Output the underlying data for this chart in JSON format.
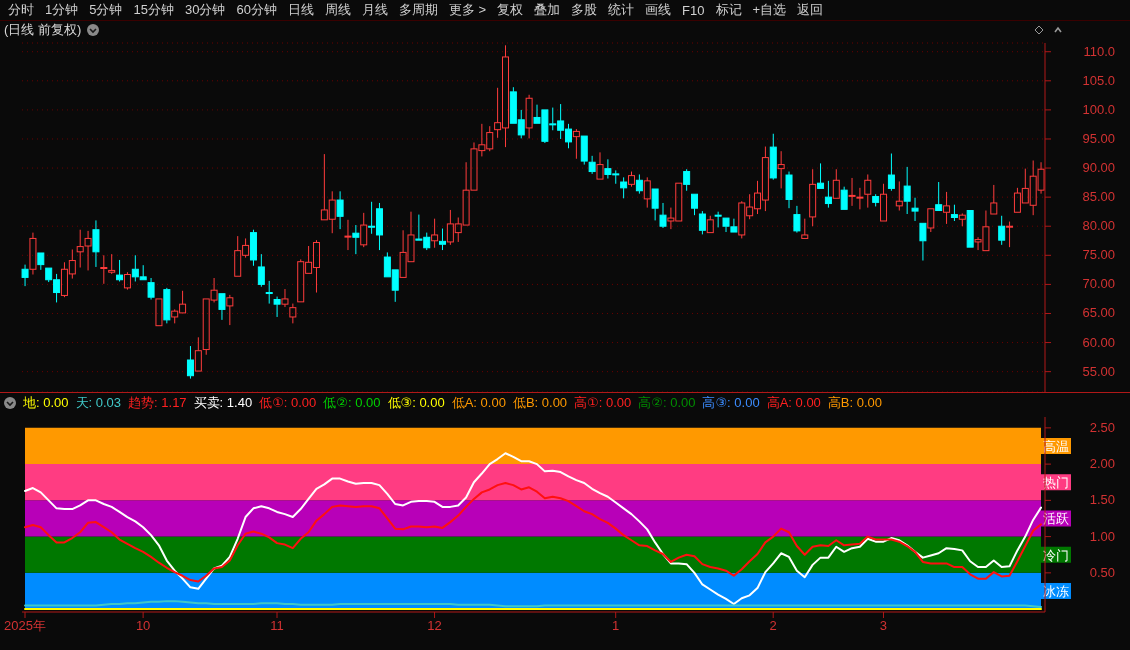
{
  "chart_data": [
    {
      "type": "candlestick",
      "title": "(日线 前复权)",
      "annotations": [
        "分时",
        "1分钟",
        "5分钟",
        "15分钟",
        "30分钟",
        "60分钟",
        "日线",
        "周线",
        "月线",
        "多周期",
        "更多 >",
        "复权",
        "叠加",
        "多股",
        "统计",
        "画线",
        "F10",
        "标记",
        "+自选",
        "返回"
      ],
      "tick_labels": "y",
      "grid": "y",
      "ylim": [
        51.5,
        111.5
      ],
      "yticks": [
        {
          "value": 55,
          "label": "55.00"
        },
        {
          "value": 60,
          "label": "60.00"
        },
        {
          "value": 65,
          "label": "65.00"
        },
        {
          "value": 70,
          "label": "70.00"
        },
        {
          "value": 75,
          "label": "75.00"
        },
        {
          "value": 80,
          "label": "80.00"
        },
        {
          "value": 85,
          "label": "85.00"
        },
        {
          "value": 90,
          "label": "90.00"
        },
        {
          "value": 95,
          "label": "95.00"
        },
        {
          "value": 100,
          "label": "100.0"
        },
        {
          "value": 105,
          "label": "105.0"
        },
        {
          "value": 110,
          "label": "110.0"
        }
      ],
      "categories": [
        "2025年",
        null,
        null,
        null,
        null,
        null,
        null,
        null,
        null,
        null,
        null,
        null,
        null,
        null,
        null,
        "10",
        null,
        null,
        null,
        null,
        null,
        null,
        null,
        null,
        null,
        null,
        null,
        null,
        null,
        null,
        null,
        null,
        "11",
        null,
        null,
        null,
        null,
        null,
        null,
        null,
        null,
        null,
        null,
        null,
        null,
        null,
        null,
        null,
        null,
        null,
        null,
        null,
        "12",
        null,
        null,
        null,
        null,
        null,
        null,
        null,
        null,
        null,
        null,
        null,
        null,
        null,
        null,
        null,
        null,
        null,
        null,
        null,
        null,
        null,
        null,
        "1",
        null,
        null,
        null,
        null,
        null,
        null,
        null,
        null,
        null,
        null,
        null,
        null,
        null,
        null,
        null,
        null,
        null,
        null,
        null,
        "2",
        null,
        null,
        null,
        null,
        null,
        null,
        null,
        null,
        null,
        null,
        null,
        null,
        null,
        "3",
        null,
        null,
        null,
        null,
        null,
        null,
        null,
        null,
        null,
        null,
        null,
        null,
        null,
        null,
        null,
        null,
        null,
        null,
        null,
        null
      ],
      "ohlc": [
        [
          72.6,
          73.4,
          69.7,
          71.2
        ],
        [
          72.6,
          78.9,
          71.7,
          77.9
        ],
        [
          75.4,
          75.5,
          72.5,
          73.4
        ],
        [
          72.8,
          72.8,
          70.4,
          70.8
        ],
        [
          70.8,
          71.8,
          66.9,
          68.6
        ],
        [
          68.1,
          73.8,
          67.8,
          72.6
        ],
        [
          71.8,
          76.0,
          71.0,
          74.1
        ],
        [
          75.6,
          79.4,
          72.9,
          76.5
        ],
        [
          76.6,
          79.2,
          72.4,
          77.9
        ],
        [
          79.4,
          81.0,
          73.0,
          75.6
        ],
        [
          72.8,
          75.0,
          70.1,
          72.9
        ],
        [
          72.1,
          75.2,
          71.8,
          72.4
        ],
        [
          71.6,
          74.2,
          70.5,
          70.8
        ],
        [
          69.4,
          72.1,
          69.1,
          71.7
        ],
        [
          72.6,
          75.0,
          70.5,
          71.3
        ],
        [
          71.3,
          73.3,
          70.7,
          70.8
        ],
        [
          70.3,
          71.1,
          67.4,
          67.8
        ],
        [
          62.9,
          67.5,
          62.9,
          67.5
        ],
        [
          69.1,
          69.4,
          63.3,
          63.9
        ],
        [
          64.4,
          65.7,
          63.3,
          65.4
        ],
        [
          65.1,
          68.9,
          65.1,
          66.6
        ],
        [
          57.0,
          59.4,
          53.8,
          54.3
        ],
        [
          55.1,
          60.9,
          55.1,
          58.6
        ],
        [
          58.8,
          67.7,
          57.9,
          67.5
        ],
        [
          67.3,
          71.1,
          66.9,
          69.0
        ],
        [
          68.4,
          68.6,
          63.9,
          65.7
        ],
        [
          66.3,
          68.2,
          63.0,
          67.7
        ],
        [
          71.4,
          78.3,
          71.4,
          75.8
        ],
        [
          75.0,
          77.9,
          74.6,
          76.7
        ],
        [
          78.9,
          79.4,
          73.2,
          74.2
        ],
        [
          73.0,
          75.2,
          69.6,
          70.0
        ],
        [
          68.6,
          70.6,
          66.7,
          68.5
        ],
        [
          67.4,
          67.9,
          64.4,
          66.6
        ],
        [
          66.6,
          69.2,
          66.1,
          67.5
        ],
        [
          64.4,
          66.7,
          63.3,
          66.0
        ],
        [
          67.0,
          74.3,
          67.0,
          73.9
        ],
        [
          71.9,
          76.6,
          71.9,
          73.8
        ],
        [
          72.9,
          77.6,
          68.6,
          77.2
        ],
        [
          81.1,
          92.4,
          81.1,
          82.8
        ],
        [
          81.2,
          86.0,
          78.8,
          84.5
        ],
        [
          84.5,
          86.0,
          79.5,
          81.7
        ],
        [
          78.2,
          81.1,
          75.9,
          78.3
        ],
        [
          78.8,
          80.2,
          75.2,
          78.1
        ],
        [
          76.8,
          82.3,
          76.4,
          80.2
        ],
        [
          80.0,
          84.2,
          78.7,
          79.9
        ],
        [
          83.0,
          84.0,
          75.9,
          78.5
        ],
        [
          74.7,
          75.5,
          71.3,
          71.3
        ],
        [
          72.5,
          72.5,
          67.0,
          69.0
        ],
        [
          71.2,
          79.3,
          71.2,
          75.5
        ],
        [
          73.9,
          82.5,
          73.9,
          78.5
        ],
        [
          77.8,
          82.0,
          77.4,
          77.6
        ],
        [
          78.1,
          78.9,
          75.9,
          76.3
        ],
        [
          77.5,
          81.3,
          76.3,
          78.5
        ],
        [
          77.4,
          79.6,
          75.9,
          76.9
        ],
        [
          77.3,
          82.8,
          76.8,
          80.4
        ],
        [
          78.9,
          81.5,
          77.3,
          80.4
        ],
        [
          80.2,
          91.0,
          80.2,
          86.2
        ],
        [
          86.2,
          94.4,
          86.2,
          93.3
        ],
        [
          93.0,
          97.6,
          92.0,
          94.0
        ],
        [
          93.3,
          97.2,
          92.9,
          96.1
        ],
        [
          96.6,
          103.8,
          95.2,
          97.8
        ],
        [
          96.9,
          111.1,
          93.6,
          109.1
        ],
        [
          103.1,
          103.9,
          97.7,
          97.7
        ],
        [
          98.3,
          100.0,
          95.1,
          95.7
        ],
        [
          96.9,
          102.6,
          95.1,
          102.0
        ],
        [
          98.7,
          100.9,
          97.7,
          97.7
        ],
        [
          100.0,
          100.2,
          94.3,
          94.6
        ],
        [
          97.6,
          100.4,
          96.5,
          97.5
        ],
        [
          98.1,
          101.0,
          95.0,
          96.5
        ],
        [
          96.7,
          97.6,
          93.4,
          94.5
        ],
        [
          95.4,
          96.7,
          91.6,
          96.3
        ],
        [
          95.5,
          95.5,
          90.6,
          91.2
        ],
        [
          91.0,
          92.1,
          89.0,
          89.4
        ],
        [
          88.1,
          92.7,
          87.9,
          90.6
        ],
        [
          89.9,
          91.5,
          88.2,
          88.9
        ],
        [
          89.0,
          89.6,
          87.3,
          88.9
        ],
        [
          87.6,
          88.4,
          84.8,
          86.6
        ],
        [
          87.2,
          89.4,
          86.8,
          88.7
        ],
        [
          87.9,
          88.9,
          85.6,
          86.1
        ],
        [
          84.7,
          88.4,
          83.2,
          87.8
        ],
        [
          86.4,
          86.4,
          81.0,
          83.1
        ],
        [
          81.9,
          84.0,
          79.7,
          80.0
        ],
        [
          80.9,
          83.2,
          79.5,
          81.4
        ],
        [
          80.9,
          87.4,
          80.7,
          87.4
        ],
        [
          89.4,
          89.8,
          86.1,
          87.2
        ],
        [
          85.5,
          85.5,
          81.9,
          83.1
        ],
        [
          82.1,
          82.6,
          78.6,
          79.3
        ],
        [
          78.9,
          81.8,
          78.9,
          81.1
        ],
        [
          81.9,
          82.5,
          79.8,
          81.8
        ],
        [
          81.4,
          81.4,
          79.0,
          80.0
        ],
        [
          79.9,
          81.3,
          78.8,
          79.0
        ],
        [
          78.5,
          84.3,
          77.9,
          84.0
        ],
        [
          81.8,
          85.5,
          81.2,
          83.3
        ],
        [
          83.0,
          87.8,
          82.1,
          85.7
        ],
        [
          84.5,
          93.7,
          82.6,
          91.8
        ],
        [
          93.6,
          95.9,
          88.0,
          88.3
        ],
        [
          89.9,
          92.9,
          86.5,
          90.6
        ],
        [
          88.8,
          89.4,
          83.1,
          84.6
        ],
        [
          82.0,
          83.5,
          78.9,
          79.2
        ],
        [
          77.9,
          81.3,
          77.7,
          78.5
        ],
        [
          81.6,
          89.8,
          80.0,
          87.2
        ],
        [
          87.4,
          90.8,
          86.5,
          86.5
        ],
        [
          85.0,
          87.8,
          83.2,
          83.9
        ],
        [
          84.8,
          89.8,
          84.6,
          87.9
        ],
        [
          86.2,
          86.8,
          82.7,
          82.9
        ],
        [
          85.2,
          88.3,
          83.5,
          85.3
        ],
        [
          84.9,
          86.6,
          82.9,
          85.0
        ],
        [
          85.5,
          88.9,
          83.2,
          87.9
        ],
        [
          85.1,
          85.5,
          83.4,
          84.1
        ],
        [
          80.9,
          87.3,
          80.9,
          85.5
        ],
        [
          88.8,
          92.5,
          86.1,
          86.5
        ],
        [
          83.5,
          87.7,
          82.7,
          84.3
        ],
        [
          86.9,
          90.2,
          82.1,
          84.3
        ],
        [
          83.1,
          84.9,
          80.9,
          82.6
        ],
        [
          80.5,
          80.5,
          74.1,
          77.5
        ],
        [
          79.7,
          83.2,
          79.0,
          83.0
        ],
        [
          83.7,
          87.6,
          82.6,
          82.7
        ],
        [
          82.4,
          85.9,
          80.4,
          83.5
        ],
        [
          82.0,
          83.7,
          80.9,
          81.5
        ],
        [
          81.2,
          82.2,
          80.0,
          81.9
        ],
        [
          82.7,
          82.7,
          76.3,
          76.4
        ],
        [
          77.3,
          78.1,
          75.9,
          77.7
        ],
        [
          75.8,
          82.7,
          75.6,
          79.9
        ],
        [
          82.1,
          87.1,
          82.1,
          84.0
        ],
        [
          80.0,
          81.8,
          76.8,
          77.6
        ],
        [
          79.9,
          80.8,
          76.4,
          80.0
        ],
        [
          82.4,
          86.6,
          82.4,
          85.7
        ],
        [
          84.0,
          89.9,
          84.0,
          86.5
        ],
        [
          83.6,
          91.3,
          81.9,
          88.6
        ],
        [
          86.2,
          91.0,
          85.6,
          89.8
        ]
      ]
    },
    {
      "type": "line",
      "annotations": [
        "地: 0.00",
        "天: 0.03",
        "趋势: 1.17",
        "买卖: 1.40",
        "低①: 0.00",
        "低②: 0.00",
        "低③: 0.00",
        "低A: 0.00",
        "低B: 0.00",
        "高①: 0.00",
        "高②: 0.00",
        "高③: 0.00",
        "高A: 0.00",
        "高B: 0.00"
      ],
      "ylim": [
        -0.04,
        2.65
      ],
      "yticks": [
        {
          "value": 0.5,
          "label": "0.50"
        },
        {
          "value": 1,
          "label": "1.00"
        },
        {
          "value": 1.5,
          "label": "1.50"
        },
        {
          "value": 2,
          "label": "2.00"
        },
        {
          "value": 2.5,
          "label": "2.50"
        }
      ],
      "bands": [
        {
          "axis": "y",
          "from": 0,
          "to": 0.5,
          "label": "冰冻",
          "color": "#008cff"
        },
        {
          "axis": "y",
          "from": 0.5,
          "to": 1,
          "label": "冷门",
          "color": "#007800"
        },
        {
          "axis": "y",
          "from": 1,
          "to": 1.5,
          "label": "活跃",
          "color": "#b800b8"
        },
        {
          "axis": "y",
          "from": 1.5,
          "to": 2,
          "label": "热门",
          "color": "#ff3c82"
        },
        {
          "axis": "y",
          "from": 2,
          "to": 2.5,
          "label": "高温",
          "color": "#ff9900"
        }
      ],
      "categories": [
        "2025年",
        null,
        null,
        null,
        null,
        null,
        null,
        null,
        null,
        null,
        null,
        null,
        null,
        null,
        null,
        "10",
        null,
        null,
        null,
        null,
        null,
        null,
        null,
        null,
        null,
        null,
        null,
        null,
        null,
        null,
        null,
        null,
        "11",
        null,
        null,
        null,
        null,
        null,
        null,
        null,
        null,
        null,
        null,
        null,
        null,
        null,
        null,
        null,
        null,
        null,
        null,
        null,
        "12",
        null,
        null,
        null,
        null,
        null,
        null,
        null,
        null,
        null,
        null,
        null,
        null,
        null,
        null,
        null,
        null,
        null,
        null,
        null,
        null,
        null,
        null,
        "1",
        null,
        null,
        null,
        null,
        null,
        null,
        null,
        null,
        null,
        null,
        null,
        null,
        null,
        null,
        null,
        null,
        null,
        null,
        null,
        "2",
        null,
        null,
        null,
        null,
        null,
        null,
        null,
        null,
        null,
        null,
        null,
        null,
        null,
        "3",
        null,
        null,
        null,
        null,
        null,
        null,
        null,
        null,
        null,
        null,
        null,
        null,
        null,
        null,
        null,
        null,
        null,
        null,
        null,
        null
      ],
      "series": [
        {
          "type": "line",
          "color": "#ffff00",
          "values": [
            0,
            0,
            0,
            0,
            0,
            0,
            0,
            0,
            0,
            0,
            0,
            0,
            0,
            0,
            0,
            0,
            0,
            0,
            0,
            0,
            0,
            0,
            0,
            0,
            0,
            0,
            0,
            0,
            0,
            0,
            0,
            0,
            0,
            0,
            0,
            0,
            0,
            0,
            0,
            0,
            0,
            0,
            0,
            0,
            0,
            0,
            0,
            0,
            0,
            0,
            0,
            0,
            0,
            0,
            0,
            0,
            0,
            0,
            0,
            0,
            0,
            0,
            0,
            0,
            0,
            0,
            0,
            0,
            0,
            0,
            0,
            0,
            0,
            0,
            0,
            0,
            0,
            0,
            0,
            0,
            0,
            0,
            0,
            0,
            0,
            0,
            0,
            0,
            0,
            0,
            0,
            0,
            0,
            0,
            0,
            0,
            0,
            0,
            0,
            0,
            0,
            0,
            0,
            0,
            0,
            0,
            0,
            0,
            0,
            0,
            0,
            0,
            0,
            0,
            0,
            0,
            0,
            0,
            0,
            0,
            0,
            0,
            0,
            0,
            0,
            0,
            0,
            0,
            0,
            0
          ]
        },
        {
          "type": "line",
          "color": "#40c8c8",
          "values": [
            0.05,
            0.05,
            0.05,
            0.05,
            0.05,
            0.05,
            0.05,
            0.05,
            0.05,
            0.05,
            0.06,
            0.07,
            0.07,
            0.08,
            0.08,
            0.09,
            0.1,
            0.1,
            0.11,
            0.11,
            0.1,
            0.09,
            0.08,
            0.08,
            0.07,
            0.07,
            0.07,
            0.07,
            0.07,
            0.07,
            0.08,
            0.08,
            0.08,
            0.07,
            0.07,
            0.06,
            0.06,
            0.06,
            0.06,
            0.06,
            0.07,
            0.07,
            0.07,
            0.07,
            0.07,
            0.07,
            0.07,
            0.07,
            0.07,
            0.07,
            0.07,
            0.07,
            0.07,
            0.07,
            0.07,
            0.06,
            0.06,
            0.06,
            0.06,
            0.06,
            0.05,
            0.04,
            0.04,
            0.04,
            0.04,
            0.04,
            0.05,
            0.05,
            0.05,
            0.05,
            0.05,
            0.05,
            0.05,
            0.05,
            0.05,
            0.05,
            0.05,
            0.05,
            0.05,
            0.05,
            0.05,
            0.05,
            0.05,
            0.05,
            0.05,
            0.05,
            0.05,
            0.05,
            0.05,
            0.05,
            0.05,
            0.05,
            0.05,
            0.05,
            0.05,
            0.05,
            0.05,
            0.05,
            0.05,
            0.05,
            0.05,
            0.05,
            0.05,
            0.05,
            0.05,
            0.05,
            0.05,
            0.05,
            0.05,
            0.05,
            0.05,
            0.05,
            0.05,
            0.05,
            0.05,
            0.05,
            0.05,
            0.05,
            0.05,
            0.05,
            0.05,
            0.05,
            0.05,
            0.05,
            0.05,
            0.05,
            0.05,
            0.05,
            0.04,
            0.03
          ]
        },
        {
          "type": "line",
          "color": "#ff1010",
          "values": [
            1.13,
            1.16,
            1.13,
            1.02,
            0.92,
            0.92,
            0.98,
            1.06,
            1.19,
            1.2,
            1.13,
            1.06,
            0.96,
            0.9,
            0.84,
            0.79,
            0.72,
            0.64,
            0.57,
            0.51,
            0.46,
            0.4,
            0.38,
            0.46,
            0.56,
            0.58,
            0.67,
            0.88,
            1.04,
            1.07,
            1.04,
            0.99,
            0.91,
            0.89,
            0.84,
            0.97,
            1.06,
            1.22,
            1.31,
            1.41,
            1.43,
            1.42,
            1.41,
            1.42,
            1.42,
            1.39,
            1.25,
            1.11,
            1.1,
            1.14,
            1.14,
            1.13,
            1.14,
            1.12,
            1.2,
            1.29,
            1.41,
            1.52,
            1.61,
            1.65,
            1.71,
            1.74,
            1.71,
            1.65,
            1.68,
            1.62,
            1.53,
            1.55,
            1.53,
            1.49,
            1.42,
            1.35,
            1.31,
            1.24,
            1.19,
            1.11,
            1.02,
            0.95,
            0.88,
            0.87,
            0.81,
            0.76,
            0.65,
            0.71,
            0.75,
            0.73,
            0.62,
            0.58,
            0.56,
            0.53,
            0.46,
            0.55,
            0.66,
            0.76,
            0.92,
            1.0,
            1.11,
            1.06,
            0.87,
            0.75,
            0.86,
            0.88,
            0.87,
            0.95,
            0.88,
            0.89,
            0.9,
            1.0,
            0.96,
            0.96,
            0.96,
            0.93,
            0.87,
            0.79,
            0.65,
            0.63,
            0.63,
            0.63,
            0.58,
            0.58,
            0.48,
            0.42,
            0.42,
            0.51,
            0.45,
            0.46,
            0.66,
            0.87,
            1.08,
            1.17
          ]
        },
        {
          "type": "line",
          "color": "#ffffff",
          "values": [
            1.63,
            1.67,
            1.61,
            1.5,
            1.39,
            1.38,
            1.38,
            1.43,
            1.5,
            1.5,
            1.45,
            1.41,
            1.34,
            1.27,
            1.21,
            1.13,
            1.02,
            0.88,
            0.67,
            0.53,
            0.42,
            0.3,
            0.28,
            0.42,
            0.56,
            0.6,
            0.72,
            0.97,
            1.27,
            1.39,
            1.42,
            1.39,
            1.34,
            1.31,
            1.27,
            1.38,
            1.52,
            1.66,
            1.72,
            1.8,
            1.8,
            1.76,
            1.73,
            1.74,
            1.74,
            1.71,
            1.59,
            1.45,
            1.43,
            1.48,
            1.49,
            1.49,
            1.48,
            1.41,
            1.41,
            1.43,
            1.54,
            1.75,
            1.87,
            2.0,
            2.07,
            2.15,
            2.1,
            2.04,
            2.04,
            2.0,
            1.9,
            1.91,
            1.89,
            1.83,
            1.78,
            1.74,
            1.66,
            1.6,
            1.55,
            1.47,
            1.39,
            1.31,
            1.21,
            1.1,
            0.92,
            0.76,
            0.63,
            0.63,
            0.62,
            0.5,
            0.34,
            0.27,
            0.2,
            0.14,
            0.07,
            0.15,
            0.19,
            0.29,
            0.51,
            0.63,
            0.77,
            0.72,
            0.53,
            0.44,
            0.61,
            0.71,
            0.71,
            0.86,
            0.79,
            0.84,
            0.86,
            0.97,
            0.93,
            0.93,
            0.98,
            0.95,
            0.88,
            0.79,
            0.71,
            0.74,
            0.77,
            0.84,
            0.83,
            0.81,
            0.66,
            0.58,
            0.58,
            0.67,
            0.58,
            0.59,
            0.81,
            1.0,
            1.23,
            1.4
          ]
        }
      ]
    }
  ]
}
